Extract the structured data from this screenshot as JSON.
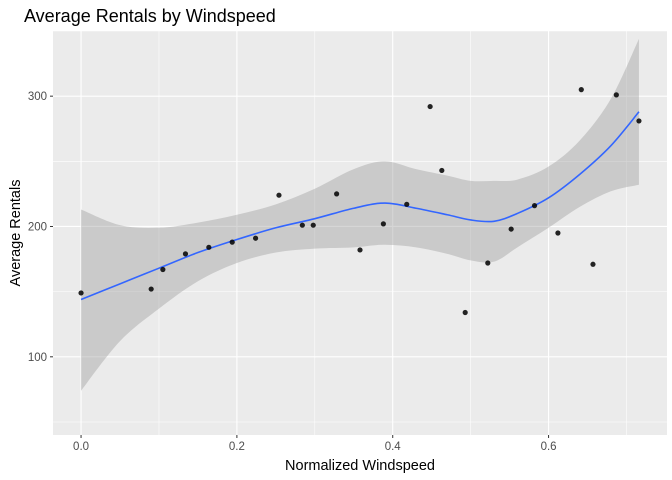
{
  "chart_data": {
    "type": "scatter",
    "title": "Average Rentals by Windspeed",
    "xlabel": "Normalized Windspeed",
    "ylabel": "Average Rentals",
    "xlim": [
      -0.036,
      0.752
    ],
    "ylim": [
      40,
      350
    ],
    "x_ticks": [
      0.0,
      0.2,
      0.4,
      0.6
    ],
    "x_tick_labels": [
      "0.0",
      "0.2",
      "0.4",
      "0.6"
    ],
    "y_ticks": [
      100,
      200,
      300
    ],
    "y_tick_labels": [
      "100",
      "200",
      "300"
    ],
    "grid": true,
    "legend": "none",
    "background_color": "#ebebeb",
    "grid_color": "#ffffff",
    "point_color": "#000000",
    "smooth_color": "#3366ff",
    "band_color": "#999999",
    "points": [
      {
        "x": 0.0,
        "y": 149
      },
      {
        "x": 0.09,
        "y": 152
      },
      {
        "x": 0.105,
        "y": 167
      },
      {
        "x": 0.134,
        "y": 179
      },
      {
        "x": 0.164,
        "y": 184
      },
      {
        "x": 0.194,
        "y": 188
      },
      {
        "x": 0.224,
        "y": 191
      },
      {
        "x": 0.254,
        "y": 224
      },
      {
        "x": 0.284,
        "y": 201
      },
      {
        "x": 0.298,
        "y": 201
      },
      {
        "x": 0.328,
        "y": 225
      },
      {
        "x": 0.358,
        "y": 182
      },
      {
        "x": 0.388,
        "y": 202
      },
      {
        "x": 0.418,
        "y": 217
      },
      {
        "x": 0.448,
        "y": 292
      },
      {
        "x": 0.463,
        "y": 243
      },
      {
        "x": 0.493,
        "y": 134
      },
      {
        "x": 0.522,
        "y": 172
      },
      {
        "x": 0.552,
        "y": 198
      },
      {
        "x": 0.582,
        "y": 216
      },
      {
        "x": 0.612,
        "y": 195
      },
      {
        "x": 0.642,
        "y": 305
      },
      {
        "x": 0.657,
        "y": 171
      },
      {
        "x": 0.687,
        "y": 301
      },
      {
        "x": 0.716,
        "y": 281
      }
    ],
    "smooth": [
      {
        "x": 0.0,
        "y": 144,
        "lo": 74,
        "hi": 213
      },
      {
        "x": 0.05,
        "y": 156,
        "lo": 112,
        "hi": 201
      },
      {
        "x": 0.1,
        "y": 168,
        "lo": 137,
        "hi": 199
      },
      {
        "x": 0.15,
        "y": 180,
        "lo": 158,
        "hi": 203
      },
      {
        "x": 0.2,
        "y": 190,
        "lo": 172,
        "hi": 209
      },
      {
        "x": 0.25,
        "y": 199,
        "lo": 180,
        "hi": 217
      },
      {
        "x": 0.3,
        "y": 206,
        "lo": 183,
        "hi": 229
      },
      {
        "x": 0.35,
        "y": 214,
        "lo": 184,
        "hi": 244
      },
      {
        "x": 0.39,
        "y": 218,
        "lo": 186,
        "hi": 250
      },
      {
        "x": 0.43,
        "y": 214,
        "lo": 184,
        "hi": 244
      },
      {
        "x": 0.47,
        "y": 209,
        "lo": 179,
        "hi": 239
      },
      {
        "x": 0.5,
        "y": 205,
        "lo": 174,
        "hi": 235
      },
      {
        "x": 0.53,
        "y": 204,
        "lo": 173,
        "hi": 235
      },
      {
        "x": 0.56,
        "y": 210,
        "lo": 184,
        "hi": 236
      },
      {
        "x": 0.6,
        "y": 222,
        "lo": 199,
        "hi": 246
      },
      {
        "x": 0.64,
        "y": 240,
        "lo": 215,
        "hi": 266
      },
      {
        "x": 0.68,
        "y": 262,
        "lo": 227,
        "hi": 298
      },
      {
        "x": 0.716,
        "y": 288,
        "lo": 232,
        "hi": 344
      }
    ]
  }
}
